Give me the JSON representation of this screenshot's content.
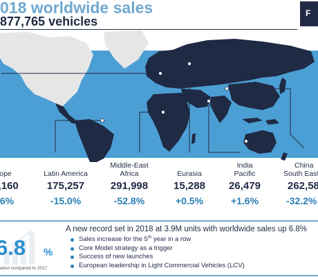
{
  "header": {
    "title": "018 worldwide sales",
    "subtitle": "877,765 vehicles",
    "logo_text": "F"
  },
  "colors": {
    "band": "#4c9fd4",
    "land": "#1f2a44",
    "land_light": "#e6e6e6",
    "accent": "#2a7fb5",
    "title": "#6fa8d0"
  },
  "regions": [
    {
      "name": "ope",
      "value": "5,160",
      "change": ".6%"
    },
    {
      "name": "Latin America",
      "value": "175,257",
      "change": "-15.0%"
    },
    {
      "name_line1": "Middle-East",
      "name_line2": "Africa",
      "value": "291,998",
      "change": "-52.8%"
    },
    {
      "name": "Eurasia",
      "value": "15,288",
      "change": "+0.5%"
    },
    {
      "name_line1": "India",
      "name_line2": "Pacific",
      "value": "26,479",
      "change": "+1.6%"
    },
    {
      "name_line1": "China",
      "name_line2": "South East",
      "value": "262,58",
      "change": "-32.2%"
    }
  ],
  "kpi": {
    "value": "6.8",
    "unit": "%",
    "caption": "ation compared to 2017"
  },
  "summary": {
    "headline": "A new record set in 2018 at 3.9M units with worldwide sales up 6.8%",
    "bullet1_pre": "Sales increase for the 5",
    "bullet1_sup": "th",
    "bullet1_post": " year in a row",
    "bullet2": "Core Model strategy as a trigger",
    "bullet3": "Success of new launches",
    "bullet4": "European leadership in Light Commercial Vehicles (LCV)"
  }
}
